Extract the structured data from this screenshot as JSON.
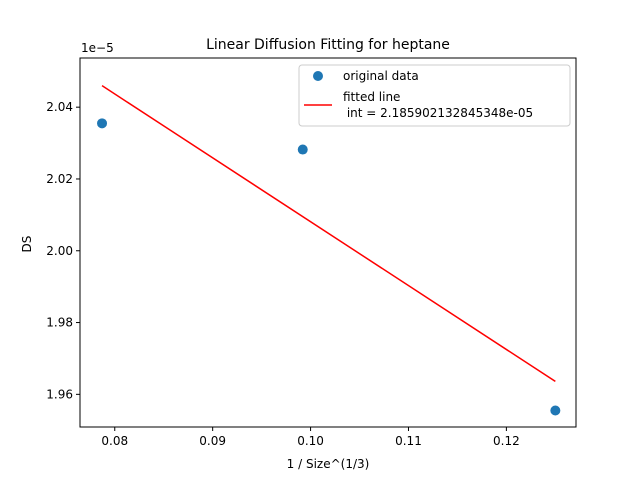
{
  "chart_data": {
    "type": "scatter",
    "title": "Linear Diffusion Fitting for heptane",
    "xlabel": "1 / Size^(1/3)",
    "ylabel": "DS",
    "y_offset_label": "1e−5",
    "xlim": [
      0.07645,
      0.12711
    ],
    "ylim": [
      1.9509,
      2.0537
    ],
    "x_ticks": [
      0.08,
      0.09,
      0.1,
      0.11,
      0.12
    ],
    "x_tick_labels": [
      "0.08",
      "0.09",
      "0.10",
      "0.11",
      "0.12"
    ],
    "y_ticks": [
      1.96,
      1.98,
      2.0,
      2.02,
      2.04
    ],
    "y_tick_labels": [
      "1.96",
      "1.98",
      "2.00",
      "2.02",
      "2.04"
    ],
    "grid": false,
    "legend_position": "top-right",
    "series": [
      {
        "name": "original data",
        "kind": "scatter",
        "color": "#1f77b4",
        "points": [
          {
            "x": 0.0787,
            "y": 2.0355
          },
          {
            "x": 0.0992,
            "y": 2.0282
          },
          {
            "x": 0.125,
            "y": 1.9555
          }
        ]
      },
      {
        "name": "fitted line\n int = 2.185902132845348e-05",
        "kind": "line",
        "color": "#ff0000",
        "points": [
          {
            "x": 0.0787,
            "y": 2.046
          },
          {
            "x": 0.125,
            "y": 1.9636
          }
        ]
      }
    ]
  }
}
